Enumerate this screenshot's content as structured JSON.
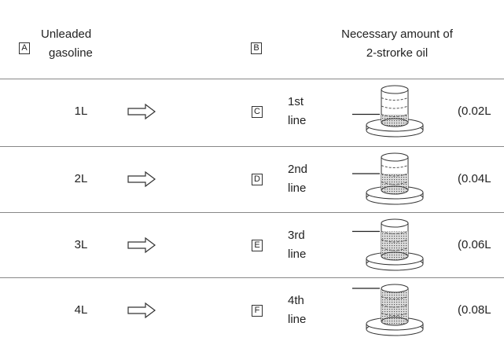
{
  "header": {
    "a": {
      "letter": "A",
      "label": [
        "Unleaded",
        "gasoline"
      ]
    },
    "b": {
      "letter": "B",
      "label": [
        "Necessary amount of",
        "2-strorke oil"
      ]
    }
  },
  "rows": [
    {
      "gasoline": "1L",
      "letter": "C",
      "line": [
        "1st",
        "line"
      ],
      "amount": "(0.02L"
    },
    {
      "gasoline": "2L",
      "letter": "D",
      "line": [
        "2nd",
        "line"
      ],
      "amount": "(0.04L"
    },
    {
      "gasoline": "3L",
      "letter": "E",
      "line": [
        "3rd",
        "line"
      ],
      "amount": "(0.06L"
    },
    {
      "gasoline": "4L",
      "letter": "F",
      "line": [
        "4th",
        "line"
      ],
      "amount": "(0.08L"
    }
  ]
}
